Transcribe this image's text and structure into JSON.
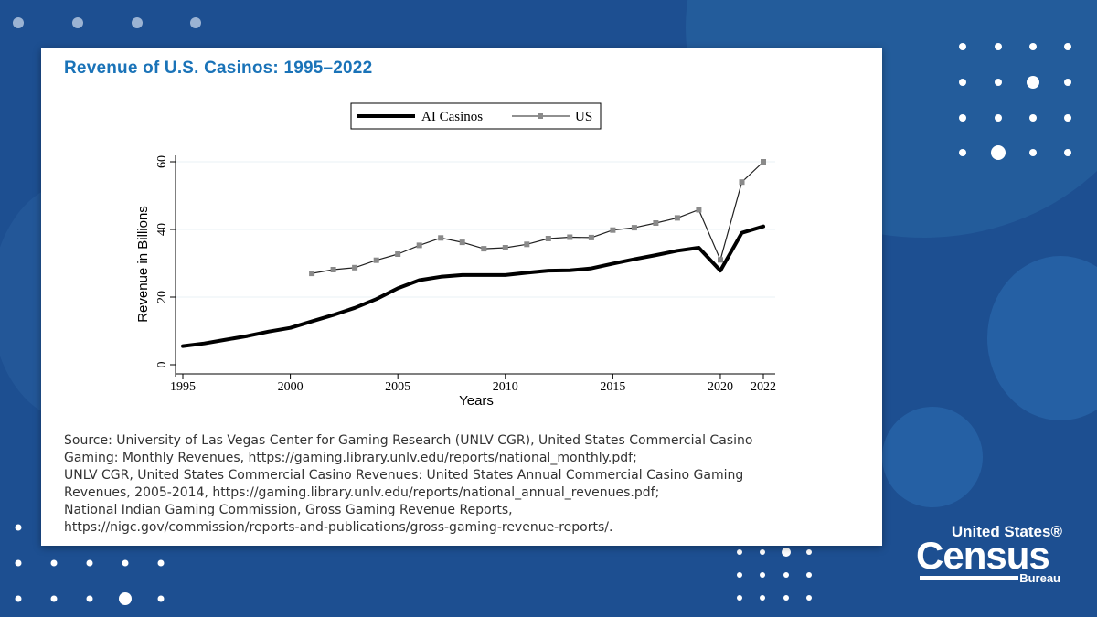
{
  "page": {
    "title": "Revenue of U.S. Casinos: 1995–2022",
    "source_lines": [
      "Source: University of Las Vegas Center for Gaming Research (UNLV CGR), United States Commercial Casino",
      "Gaming: Monthly Revenues, https://gaming.library.unlv.edu/reports/national_monthly.pdf;",
      "UNLV CGR, United States Commercial Casino Revenues: United States Annual Commercial Casino Gaming",
      "Revenues, 2005-2014, https://gaming.library.unlv.edu/reports/national_annual_revenues.pdf;",
      "National Indian Gaming Commission, Gross Gaming Revenue Reports,",
      "https://nigc.gov/commission/reports-and-publications/gross-gaming-revenue-reports/."
    ]
  },
  "logo": {
    "top": "United States®",
    "main": "Census",
    "sub": "Bureau"
  },
  "colors": {
    "background": "#1d4f91",
    "title": "#1a73b8",
    "ai_line": "#000000",
    "us_line": "#222222",
    "us_marker": "#8a8a8a",
    "grid": "#eaf0f6"
  },
  "chart_data": {
    "type": "line",
    "xlabel": "Years",
    "ylabel": "Revenue in Billions",
    "xlim": [
      1995,
      2022
    ],
    "ylim": [
      0,
      60
    ],
    "x_ticks": [
      1995,
      2000,
      2005,
      2010,
      2015,
      2020,
      2022
    ],
    "y_ticks": [
      0,
      20,
      40,
      60
    ],
    "grid": true,
    "legend_position": "top-center",
    "series": [
      {
        "name": "AI Casinos",
        "style": "thick-line",
        "x": [
          1995,
          1996,
          1997,
          1998,
          1999,
          2000,
          2001,
          2002,
          2003,
          2004,
          2005,
          2006,
          2007,
          2008,
          2009,
          2010,
          2011,
          2012,
          2013,
          2014,
          2015,
          2016,
          2017,
          2018,
          2019,
          2020,
          2021,
          2022
        ],
        "values": [
          5.5,
          6.3,
          7.4,
          8.5,
          9.8,
          10.9,
          12.8,
          14.7,
          16.8,
          19.4,
          22.6,
          25.0,
          26.0,
          26.5,
          26.5,
          26.5,
          27.2,
          27.8,
          27.9,
          28.5,
          29.9,
          31.2,
          32.4,
          33.7,
          34.6,
          27.8,
          39.0,
          40.9
        ]
      },
      {
        "name": "US",
        "style": "thin-line-square-markers",
        "x": [
          2001,
          2002,
          2003,
          2004,
          2005,
          2006,
          2007,
          2008,
          2009,
          2010,
          2011,
          2012,
          2013,
          2014,
          2015,
          2016,
          2017,
          2018,
          2019,
          2020,
          2021,
          2022
        ],
        "values": [
          27.0,
          28.1,
          28.7,
          30.9,
          32.7,
          35.3,
          37.5,
          36.2,
          34.3,
          34.6,
          35.6,
          37.3,
          37.7,
          37.6,
          39.8,
          40.5,
          41.9,
          43.4,
          45.8,
          31.0,
          54.0,
          60.0
        ]
      }
    ]
  }
}
